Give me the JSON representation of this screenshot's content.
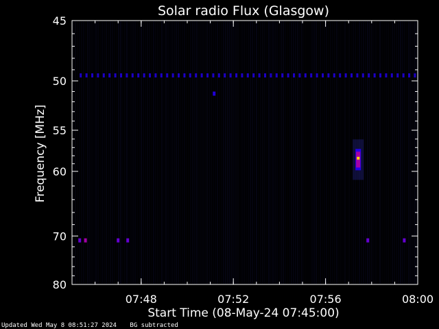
{
  "chart_data": {
    "type": "heatmap",
    "title": "Solar radio Flux (Glasgow)",
    "xlabel": "Start Time (08-May-24 07:45:00)",
    "ylabel": "Frequency [MHz]",
    "x_ticks": [
      "07:48",
      "07:52",
      "07:56",
      "08:00"
    ],
    "y_ticks": [
      "45",
      "50",
      "55",
      "60",
      "70",
      "80"
    ],
    "xlim": [
      "07:45:00",
      "08:00:00"
    ],
    "ylim": [
      45,
      80
    ],
    "y_scale": "reciprocal",
    "colormap": "black-blue-red-yellow",
    "features": [
      {
        "kind": "interference_line",
        "freq_mhz": 49.5,
        "time_start": "07:45:20",
        "time_end": "07:59:50",
        "intensity": 0.35
      },
      {
        "kind": "burst",
        "time": "07:57:25",
        "freq_mhz_range": [
          57.5,
          59.5
        ],
        "peak_freq_mhz": 58.3,
        "intensity": 1.0
      },
      {
        "kind": "spot",
        "time": "07:45:20",
        "freq_mhz": 70.8,
        "intensity": 0.6
      },
      {
        "kind": "spot",
        "time": "07:45:35",
        "freq_mhz": 70.8,
        "intensity": 0.7
      },
      {
        "kind": "spot",
        "time": "07:47:00",
        "freq_mhz": 70.8,
        "intensity": 0.6
      },
      {
        "kind": "spot",
        "time": "07:47:25",
        "freq_mhz": 70.8,
        "intensity": 0.6
      },
      {
        "kind": "spot",
        "time": "07:57:50",
        "freq_mhz": 70.8,
        "intensity": 0.6
      },
      {
        "kind": "spot",
        "time": "07:59:25",
        "freq_mhz": 70.8,
        "intensity": 0.6
      },
      {
        "kind": "spot",
        "time": "07:51:10",
        "freq_mhz": 51.2,
        "intensity": 0.4
      }
    ]
  },
  "footer": {
    "updated": "Updated Wed May  8 08:51:27 2024",
    "note": "BG subtracted"
  }
}
